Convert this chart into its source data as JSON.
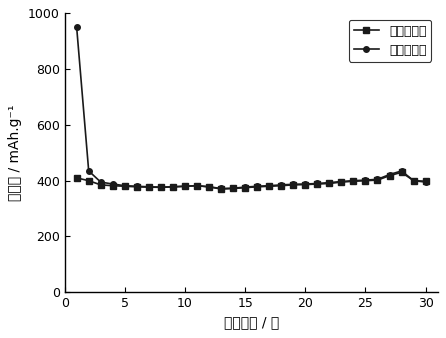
{
  "charge_x": [
    1,
    2,
    3,
    4,
    5,
    6,
    7,
    8,
    9,
    10,
    11,
    12,
    13,
    14,
    15,
    16,
    17,
    18,
    19,
    20,
    21,
    22,
    23,
    24,
    25,
    26,
    27,
    28,
    29,
    30
  ],
  "charge_y": [
    410,
    400,
    385,
    382,
    380,
    378,
    377,
    376,
    378,
    380,
    382,
    378,
    370,
    372,
    375,
    378,
    380,
    382,
    385,
    386,
    388,
    390,
    395,
    398,
    400,
    402,
    418,
    430,
    400,
    398
  ],
  "discharge_x": [
    1,
    2,
    3,
    4,
    5,
    6,
    7,
    8,
    9,
    10,
    11,
    12,
    13,
    14,
    15,
    16,
    17,
    18,
    19,
    20,
    21,
    22,
    23,
    24,
    25,
    26,
    27,
    28,
    29,
    30
  ],
  "discharge_y": [
    950,
    435,
    395,
    388,
    382,
    380,
    378,
    377,
    378,
    380,
    382,
    378,
    372,
    373,
    377,
    380,
    382,
    385,
    387,
    388,
    390,
    393,
    397,
    400,
    402,
    405,
    422,
    435,
    400,
    395
  ],
  "xlabel": "循环次数 / 次",
  "ylabel": "比容量 / mAh.g⁻¹",
  "legend_charge": "充电比容量",
  "legend_discharge": "放电比容量",
  "xlim": [
    0,
    31
  ],
  "ylim": [
    0,
    1000
  ],
  "yticks": [
    0,
    200,
    400,
    600,
    800,
    1000
  ],
  "xticks": [
    0,
    5,
    10,
    15,
    20,
    25,
    30
  ],
  "line_color": "#1a1a1a",
  "marker_square": "s",
  "marker_circle": "o",
  "marker_size": 4,
  "line_width": 1.2,
  "bg_color": "#ffffff"
}
